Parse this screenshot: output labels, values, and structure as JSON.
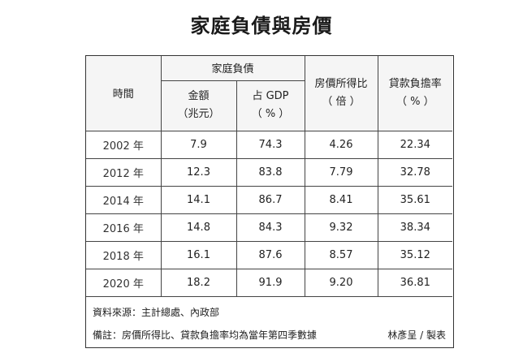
{
  "title": "家庭負債與房價",
  "table": {
    "headers": {
      "time": "時間",
      "household_debt": "家庭負債",
      "amount": "金額",
      "amount_unit": "（兆元）",
      "pct_gdp": "占 GDP",
      "pct_gdp_unit": "（ % ）",
      "price_income_ratio": "房價所得比",
      "price_income_unit": "（ 倍 ）",
      "loan_burden_ratio": "貸款負擔率",
      "loan_burden_unit": "（ % ）"
    },
    "rows": [
      {
        "year": "2002 年",
        "amount": "7.9",
        "pct_gdp": "74.3",
        "price_income": "4.26",
        "loan_burden": "22.34"
      },
      {
        "year": "2012 年",
        "amount": "12.3",
        "pct_gdp": "83.8",
        "price_income": "7.79",
        "loan_burden": "32.78"
      },
      {
        "year": "2014 年",
        "amount": "14.1",
        "pct_gdp": "86.7",
        "price_income": "8.41",
        "loan_burden": "35.61"
      },
      {
        "year": "2016 年",
        "amount": "14.8",
        "pct_gdp": "84.3",
        "price_income": "9.32",
        "loan_burden": "38.34"
      },
      {
        "year": "2018 年",
        "amount": "16.1",
        "pct_gdp": "87.6",
        "price_income": "8.57",
        "loan_burden": "35.12"
      },
      {
        "year": "2020 年",
        "amount": "18.2",
        "pct_gdp": "91.9",
        "price_income": "9.20",
        "loan_burden": "36.81"
      }
    ]
  },
  "notes": {
    "source": "資料來源：主計總處、內政部",
    "remark": "備註：房價所得比、貸款負擔率均為當年第四季數據",
    "author": "林彥呈 / 製表"
  }
}
